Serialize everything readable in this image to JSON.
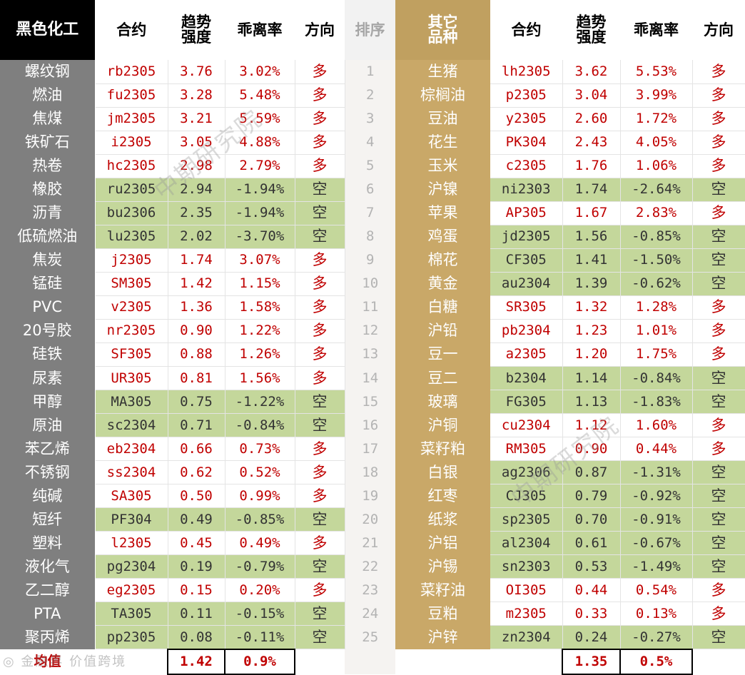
{
  "headers": {
    "left_category": "黑色化工",
    "contract": "合约",
    "trend_strength": "趋势\n强度",
    "deviation_rate": "乖离率",
    "direction": "方向",
    "sort": "排序",
    "right_category": "其它\n品种"
  },
  "rows": [
    {
      "rank": "1",
      "left": {
        "name": "螺纹钢",
        "code": "rb2305",
        "strength": "3.76",
        "deviation": "3.02%",
        "dir": "多"
      },
      "right": {
        "name": "生猪",
        "code": "lh2305",
        "strength": "3.62",
        "deviation": "5.53%",
        "dir": "多"
      }
    },
    {
      "rank": "2",
      "left": {
        "name": "燃油",
        "code": "fu2305",
        "strength": "3.28",
        "deviation": "5.48%",
        "dir": "多"
      },
      "right": {
        "name": "棕榈油",
        "code": "p2305",
        "strength": "3.04",
        "deviation": "3.99%",
        "dir": "多"
      }
    },
    {
      "rank": "3",
      "left": {
        "name": "焦煤",
        "code": "jm2305",
        "strength": "3.21",
        "deviation": "5.59%",
        "dir": "多"
      },
      "right": {
        "name": "豆油",
        "code": "y2305",
        "strength": "2.60",
        "deviation": "1.72%",
        "dir": "多"
      }
    },
    {
      "rank": "4",
      "left": {
        "name": "铁矿石",
        "code": "i2305",
        "strength": "3.05",
        "deviation": "4.88%",
        "dir": "多"
      },
      "right": {
        "name": "花生",
        "code": "PK304",
        "strength": "2.43",
        "deviation": "4.05%",
        "dir": "多"
      }
    },
    {
      "rank": "5",
      "left": {
        "name": "热卷",
        "code": "hc2305",
        "strength": "2.98",
        "deviation": "2.79%",
        "dir": "多"
      },
      "right": {
        "name": "玉米",
        "code": "c2305",
        "strength": "1.76",
        "deviation": "1.06%",
        "dir": "多"
      }
    },
    {
      "rank": "6",
      "left": {
        "name": "橡胶",
        "code": "ru2305",
        "strength": "2.94",
        "deviation": "-1.94%",
        "dir": "空"
      },
      "right": {
        "name": "沪镍",
        "code": "ni2303",
        "strength": "1.74",
        "deviation": "-2.64%",
        "dir": "空"
      }
    },
    {
      "rank": "7",
      "left": {
        "name": "沥青",
        "code": "bu2306",
        "strength": "2.35",
        "deviation": "-1.94%",
        "dir": "空"
      },
      "right": {
        "name": "苹果",
        "code": "AP305",
        "strength": "1.67",
        "deviation": "2.83%",
        "dir": "多"
      }
    },
    {
      "rank": "8",
      "left": {
        "name": "低硫燃油",
        "code": "lu2305",
        "strength": "2.02",
        "deviation": "-3.70%",
        "dir": "空"
      },
      "right": {
        "name": "鸡蛋",
        "code": "jd2305",
        "strength": "1.56",
        "deviation": "-0.85%",
        "dir": "空"
      }
    },
    {
      "rank": "9",
      "left": {
        "name": "焦炭",
        "code": "j2305",
        "strength": "1.74",
        "deviation": "3.07%",
        "dir": "多"
      },
      "right": {
        "name": "棉花",
        "code": "CF305",
        "strength": "1.41",
        "deviation": "-1.50%",
        "dir": "空"
      }
    },
    {
      "rank": "10",
      "left": {
        "name": "锰硅",
        "code": "SM305",
        "strength": "1.42",
        "deviation": "1.15%",
        "dir": "多"
      },
      "right": {
        "name": "黄金",
        "code": "au2304",
        "strength": "1.39",
        "deviation": "-0.62%",
        "dir": "空"
      }
    },
    {
      "rank": "11",
      "left": {
        "name": "PVC",
        "code": "v2305",
        "strength": "1.36",
        "deviation": "1.58%",
        "dir": "多"
      },
      "right": {
        "name": "白糖",
        "code": "SR305",
        "strength": "1.32",
        "deviation": "1.28%",
        "dir": "多"
      }
    },
    {
      "rank": "12",
      "left": {
        "name": "20号胶",
        "code": "nr2305",
        "strength": "0.90",
        "deviation": "1.22%",
        "dir": "多"
      },
      "right": {
        "name": "沪铅",
        "code": "pb2304",
        "strength": "1.23",
        "deviation": "1.01%",
        "dir": "多"
      }
    },
    {
      "rank": "13",
      "left": {
        "name": "硅铁",
        "code": "SF305",
        "strength": "0.88",
        "deviation": "1.26%",
        "dir": "多"
      },
      "right": {
        "name": "豆一",
        "code": "a2305",
        "strength": "1.20",
        "deviation": "1.75%",
        "dir": "多"
      }
    },
    {
      "rank": "14",
      "left": {
        "name": "尿素",
        "code": "UR305",
        "strength": "0.81",
        "deviation": "1.56%",
        "dir": "多"
      },
      "right": {
        "name": "豆二",
        "code": "b2304",
        "strength": "1.14",
        "deviation": "-0.84%",
        "dir": "空"
      }
    },
    {
      "rank": "15",
      "left": {
        "name": "甲醇",
        "code": "MA305",
        "strength": "0.75",
        "deviation": "-1.22%",
        "dir": "空"
      },
      "right": {
        "name": "玻璃",
        "code": "FG305",
        "strength": "1.13",
        "deviation": "-1.83%",
        "dir": "空"
      }
    },
    {
      "rank": "16",
      "left": {
        "name": "原油",
        "code": "sc2304",
        "strength": "0.71",
        "deviation": "-0.84%",
        "dir": "空"
      },
      "right": {
        "name": "沪铜",
        "code": "cu2304",
        "strength": "1.12",
        "deviation": "1.60%",
        "dir": "多"
      }
    },
    {
      "rank": "17",
      "left": {
        "name": "苯乙烯",
        "code": "eb2304",
        "strength": "0.66",
        "deviation": "0.73%",
        "dir": "多"
      },
      "right": {
        "name": "菜籽粕",
        "code": "RM305",
        "strength": "0.90",
        "deviation": "0.44%",
        "dir": "多"
      }
    },
    {
      "rank": "18",
      "left": {
        "name": "不锈钢",
        "code": "ss2304",
        "strength": "0.62",
        "deviation": "0.52%",
        "dir": "多"
      },
      "right": {
        "name": "白银",
        "code": "ag2306",
        "strength": "0.87",
        "deviation": "-1.31%",
        "dir": "空"
      }
    },
    {
      "rank": "19",
      "left": {
        "name": "纯碱",
        "code": "SA305",
        "strength": "0.50",
        "deviation": "0.99%",
        "dir": "多"
      },
      "right": {
        "name": "红枣",
        "code": "CJ305",
        "strength": "0.79",
        "deviation": "-0.92%",
        "dir": "空"
      }
    },
    {
      "rank": "20",
      "left": {
        "name": "短纤",
        "code": "PF304",
        "strength": "0.49",
        "deviation": "-0.85%",
        "dir": "空"
      },
      "right": {
        "name": "纸浆",
        "code": "sp2305",
        "strength": "0.70",
        "deviation": "-0.91%",
        "dir": "空"
      }
    },
    {
      "rank": "21",
      "left": {
        "name": "塑料",
        "code": "l2305",
        "strength": "0.45",
        "deviation": "0.49%",
        "dir": "多"
      },
      "right": {
        "name": "沪铝",
        "code": "al2304",
        "strength": "0.61",
        "deviation": "-0.67%",
        "dir": "空"
      }
    },
    {
      "rank": "22",
      "left": {
        "name": "液化气",
        "code": "pg2304",
        "strength": "0.19",
        "deviation": "-0.79%",
        "dir": "空"
      },
      "right": {
        "name": "沪锡",
        "code": "sn2303",
        "strength": "0.53",
        "deviation": "-1.49%",
        "dir": "空"
      }
    },
    {
      "rank": "23",
      "left": {
        "name": "乙二醇",
        "code": "eg2305",
        "strength": "0.15",
        "deviation": "0.20%",
        "dir": "多"
      },
      "right": {
        "name": "菜籽油",
        "code": "OI305",
        "strength": "0.44",
        "deviation": "0.54%",
        "dir": "多"
      }
    },
    {
      "rank": "24",
      "left": {
        "name": "PTA",
        "code": "TA305",
        "strength": "0.11",
        "deviation": "-0.15%",
        "dir": "空"
      },
      "right": {
        "name": "豆粕",
        "code": "m2305",
        "strength": "0.33",
        "deviation": "0.13%",
        "dir": "多"
      }
    },
    {
      "rank": "25",
      "left": {
        "name": "聚丙烯",
        "code": "pp2305",
        "strength": "0.08",
        "deviation": "-0.11%",
        "dir": "空"
      },
      "right": {
        "name": "沪锌",
        "code": "zn2304",
        "strength": "0.24",
        "deviation": "-0.27%",
        "dir": "空"
      }
    }
  ],
  "footer": {
    "label": "均值",
    "left_avg_strength": "1.42",
    "left_avg_deviation": "0.9%",
    "right_avg_strength": "1.35",
    "right_avg_deviation": "0.5%"
  },
  "watermark": {
    "text": "中期研究院",
    "logo_text": "◎ 金融界 价值跨境"
  },
  "colors": {
    "long_text": "#c00000",
    "short_fill": "#c4d79b",
    "left_category_fill": "#7f7f7f",
    "right_category_fill": "#c9a868",
    "left_header_fill": "#000000",
    "right_header_fill": "#c0a060"
  }
}
